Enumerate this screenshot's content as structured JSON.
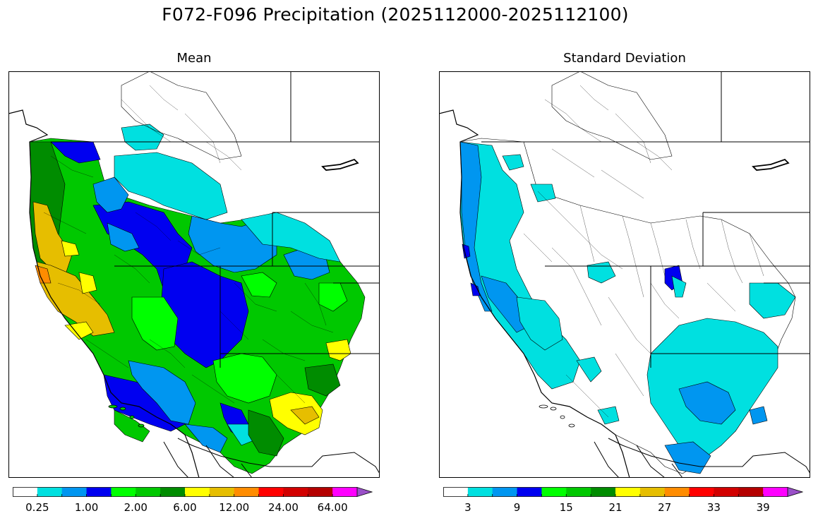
{
  "title": "F072-F096 Precipitation (2025112000-2025112100)",
  "panels": [
    {
      "id": "mean",
      "title": "Mean",
      "colorbar": {
        "colors": [
          "#ffffff",
          "#00e0e0",
          "#0096f0",
          "#0000f0",
          "#00ff00",
          "#00c800",
          "#008c00",
          "#ffff00",
          "#e6be00",
          "#ff8c00",
          "#ff0000",
          "#d20000",
          "#b40000",
          "#ff00ff",
          "#9a50c8"
        ],
        "tick_labels": [
          "0.25",
          "1.00",
          "2.00",
          "6.00",
          "12.00",
          "24.00",
          "64.00"
        ],
        "tick_label_boundaries": [
          1,
          3,
          5,
          7,
          9,
          11,
          13
        ],
        "extend": "max"
      }
    },
    {
      "id": "std",
      "title": "Standard Deviation",
      "colorbar": {
        "colors": [
          "#ffffff",
          "#00e0e0",
          "#0096f0",
          "#0000f0",
          "#00ff00",
          "#00c800",
          "#008c00",
          "#ffff00",
          "#e6be00",
          "#ff8c00",
          "#ff0000",
          "#d20000",
          "#b40000",
          "#ff00ff",
          "#9a50c8"
        ],
        "tick_labels": [
          "3",
          "9",
          "15",
          "21",
          "27",
          "33",
          "39"
        ],
        "tick_label_boundaries": [
          1,
          3,
          5,
          7,
          9,
          11,
          13
        ],
        "extend": "max"
      }
    }
  ]
}
